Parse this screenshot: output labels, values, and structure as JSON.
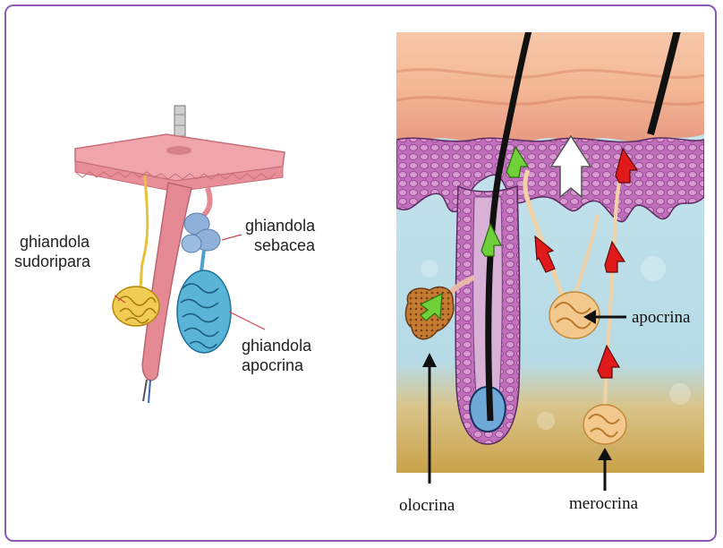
{
  "left_diagram": {
    "labels": {
      "sudoripara": [
        "ghiandola",
        "sudoripara"
      ],
      "sebacea": [
        "ghiandola",
        "sebacea"
      ],
      "apocrina": [
        "ghiandola",
        "apocrina"
      ]
    }
  },
  "right_diagram": {
    "labels": {
      "apocrina": "apocrina",
      "olocrina": "olocrina",
      "merocrina": "merocrina"
    }
  },
  "colors": {
    "frame": "#8a5ab5",
    "skin_pink": "#e8949c",
    "sweat_gland": "#e7c23a",
    "apocrine_gland": "#4aa3c8",
    "sebaceous_gland": "#8fb0d8",
    "epidermis": "#b65fb0",
    "dermis": "#bfe0ea",
    "arrow_green": "#6fd03a",
    "arrow_red": "#e01a1a",
    "arrow_white": "#ffffff"
  }
}
